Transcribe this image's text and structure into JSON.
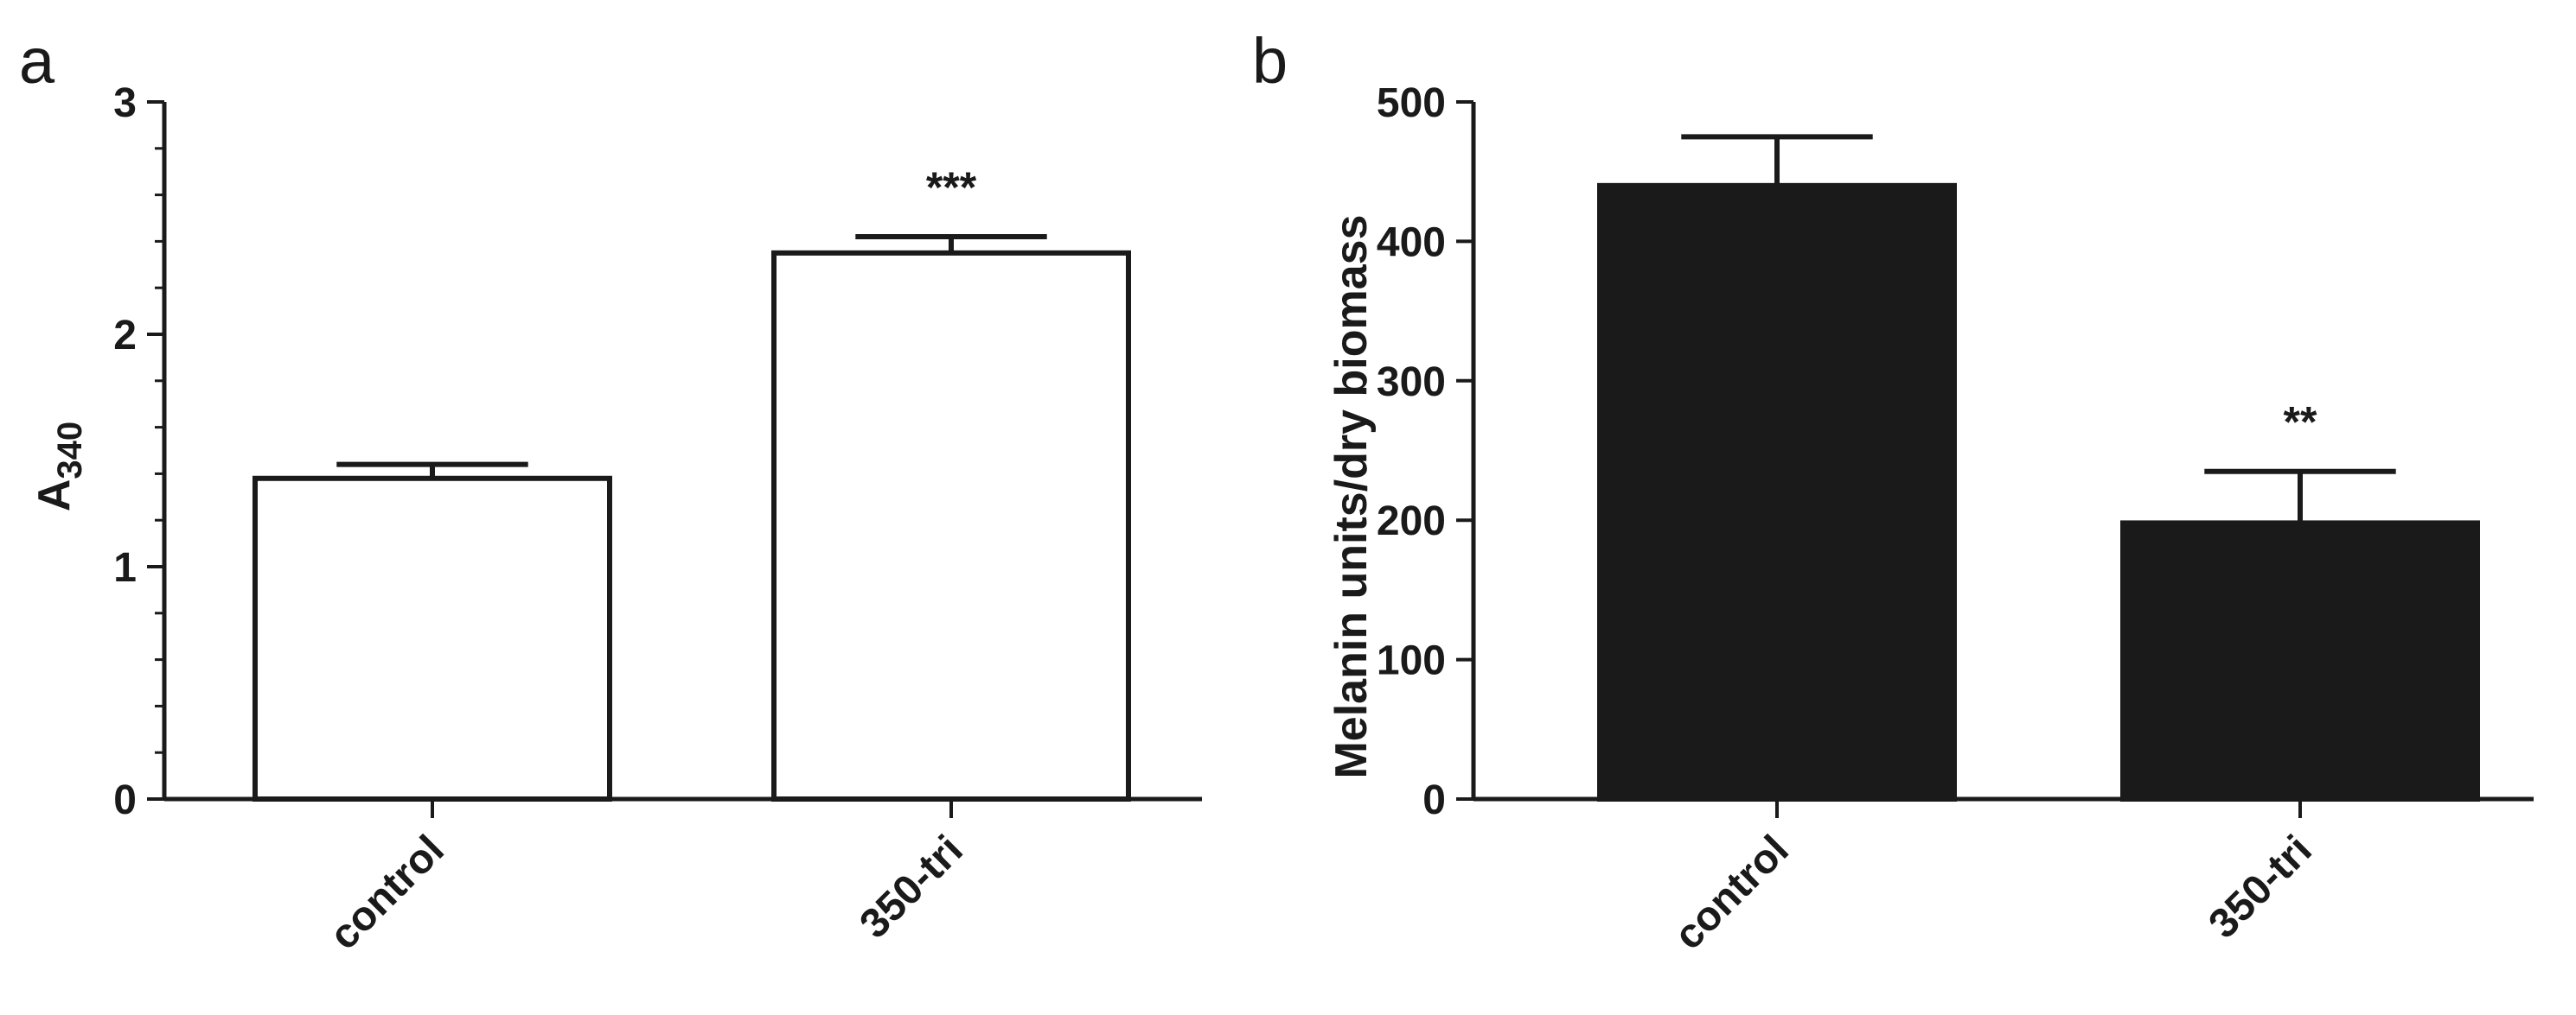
{
  "chart_data": [
    {
      "panel": "a",
      "type": "bar",
      "categories": [
        "control",
        "350-tri"
      ],
      "values": [
        1.38,
        2.35
      ],
      "errors": [
        0.06,
        0.07
      ],
      "significance": [
        "",
        "***"
      ],
      "ylabel_main": "A",
      "ylabel_sub": "340",
      "ylim": [
        0,
        3
      ],
      "yticks": [
        "0",
        "1",
        "2",
        "3"
      ],
      "ytick_values": [
        0,
        1,
        2,
        3
      ],
      "bar_fill": "#ffffff",
      "grid": false
    },
    {
      "panel": "b",
      "type": "bar",
      "categories": [
        "control",
        "350-tri"
      ],
      "values": [
        440,
        198
      ],
      "errors": [
        35,
        37
      ],
      "significance": [
        "",
        "**"
      ],
      "ylabel_main": "Melanin units/dry biomass",
      "ylabel_sub": "",
      "ylim": [
        0,
        500
      ],
      "yticks": [
        "0",
        "100",
        "200",
        "300",
        "400",
        "500"
      ],
      "ytick_values": [
        0,
        100,
        200,
        300,
        400,
        500
      ],
      "bar_fill": "#1a1a1a",
      "grid": false
    }
  ]
}
